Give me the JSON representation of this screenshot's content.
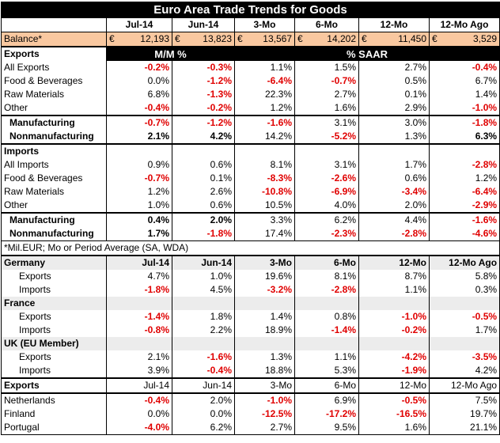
{
  "title": "Euro Area Trade Trends for Goods",
  "columns": [
    "Jul-14",
    "Jun-14",
    "3-Mo",
    "6-Mo",
    "12-Mo",
    "12-Mo Ago"
  ],
  "balance": {
    "label": "Balance*",
    "currency_symbol": "€",
    "values": [
      "12,193",
      "13,823",
      "13,567",
      "14,202",
      "11,450",
      "3,529"
    ]
  },
  "exports_header": {
    "label": "Exports",
    "mm": "M/M %",
    "saar": "% SAAR"
  },
  "exports_rows": [
    {
      "label": "All Exports",
      "values": [
        "-0.2%",
        "-0.3%",
        "1.1%",
        "1.5%",
        "2.7%",
        "-0.4%"
      ]
    },
    {
      "label": "Food & Beverages",
      "values": [
        "0.0%",
        "-1.2%",
        "-6.4%",
        "-0.7%",
        "0.5%",
        "6.7%"
      ]
    },
    {
      "label": "Raw Materials",
      "values": [
        "6.8%",
        "-1.3%",
        "22.3%",
        "2.7%",
        "0.1%",
        "1.4%"
      ]
    },
    {
      "label": "Other",
      "values": [
        "-0.4%",
        "-0.2%",
        "1.2%",
        "1.6%",
        "2.9%",
        "-1.0%"
      ]
    }
  ],
  "exports_sub": [
    {
      "label": "Manufacturing",
      "values": [
        "-0.7%",
        "-1.2%",
        "-1.6%",
        "3.1%",
        "3.0%",
        "-1.8%"
      ]
    },
    {
      "label": "Nonmanufacturing",
      "values": [
        "2.1%",
        "4.2%",
        "14.2%",
        "-5.2%",
        "1.3%",
        "6.3%"
      ]
    }
  ],
  "imports_header": {
    "label": "Imports"
  },
  "imports_rows": [
    {
      "label": "All Imports",
      "values": [
        "0.9%",
        "0.6%",
        "8.1%",
        "3.1%",
        "1.7%",
        "-2.8%"
      ]
    },
    {
      "label": "Food & Beverages",
      "values": [
        "-0.7%",
        "0.1%",
        "-8.3%",
        "-2.6%",
        "0.6%",
        "1.2%"
      ]
    },
    {
      "label": "Raw Materials",
      "values": [
        "1.2%",
        "2.6%",
        "-10.8%",
        "-6.9%",
        "-3.4%",
        "-6.4%"
      ]
    },
    {
      "label": "Other",
      "values": [
        "1.0%",
        "0.6%",
        "10.5%",
        "4.0%",
        "2.0%",
        "-2.9%"
      ]
    }
  ],
  "imports_sub": [
    {
      "label": "Manufacturing",
      "values": [
        "0.4%",
        "2.0%",
        "3.3%",
        "6.2%",
        "4.4%",
        "-1.6%"
      ]
    },
    {
      "label": "Nonmanufacturing",
      "values": [
        "1.7%",
        "-1.8%",
        "17.4%",
        "-2.3%",
        "-2.8%",
        "-4.6%"
      ]
    }
  ],
  "note": "*Mil.EUR; Mo or Period Average (SA, WDA)",
  "countries": [
    {
      "name": "Germany",
      "rows": [
        {
          "label": "Exports",
          "values": [
            "4.7%",
            "1.0%",
            "19.6%",
            "8.1%",
            "8.7%",
            "5.8%"
          ]
        },
        {
          "label": "Imports",
          "values": [
            "-1.8%",
            "4.5%",
            "-3.2%",
            "-2.8%",
            "1.1%",
            "0.3%"
          ]
        }
      ]
    },
    {
      "name": "France",
      "rows": [
        {
          "label": "Exports",
          "values": [
            "-1.4%",
            "1.8%",
            "1.4%",
            "0.8%",
            "-1.0%",
            "-0.5%"
          ]
        },
        {
          "label": "Imports",
          "values": [
            "-0.8%",
            "2.2%",
            "18.9%",
            "-1.4%",
            "-0.2%",
            "1.7%"
          ]
        }
      ]
    },
    {
      "name": "UK (EU Member)",
      "rows": [
        {
          "label": "Exports",
          "values": [
            "2.1%",
            "-1.6%",
            "1.3%",
            "1.1%",
            "-4.2%",
            "-3.5%"
          ]
        },
        {
          "label": "Imports",
          "values": [
            "3.9%",
            "-0.4%",
            "18.8%",
            "5.3%",
            "-1.9%",
            "4.2%"
          ]
        }
      ]
    }
  ],
  "country_exports_header": {
    "label": "Exports"
  },
  "country_exports": [
    {
      "label": "Netherlands",
      "values": [
        "-0.4%",
        "2.0%",
        "-1.0%",
        "6.9%",
        "-0.5%",
        "7.5%"
      ]
    },
    {
      "label": "Finland",
      "values": [
        "0.0%",
        "0.0%",
        "-12.5%",
        "-17.2%",
        "-16.5%",
        "19.7%"
      ]
    },
    {
      "label": "Portugal",
      "values": [
        "-4.0%",
        "6.2%",
        "2.7%",
        "9.5%",
        "1.6%",
        "21.1%"
      ]
    }
  ],
  "colors": {
    "negative": "#e00000",
    "balance_bg": "#f9c8a0",
    "header_bg": "#000000",
    "gray_band": "#ececec"
  }
}
